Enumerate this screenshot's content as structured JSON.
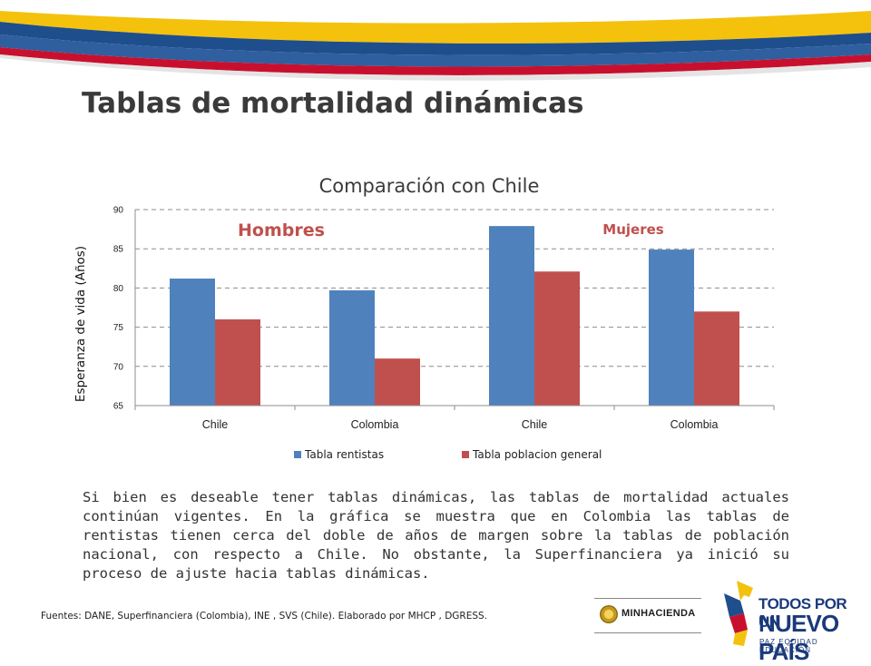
{
  "slide": {
    "title": "Tablas de mortalidad dinámicas"
  },
  "chart_data": {
    "type": "bar",
    "title": "Comparación con Chile",
    "xlabel": "",
    "ylabel": "Esperanza de vida (Años)",
    "categories": [
      "Chile",
      "Colombia",
      "Chile",
      "Colombia"
    ],
    "series": [
      {
        "name": "Tabla rentistas",
        "values": [
          81.2,
          79.7,
          87.9,
          84.9
        ],
        "color": "#4f81bd"
      },
      {
        "name": "Tabla poblacion general",
        "values": [
          76.0,
          71.0,
          82.1,
          77.0
        ],
        "color": "#c0504d"
      }
    ],
    "ylim": [
      65,
      90
    ],
    "yticks": [
      65,
      70,
      75,
      80,
      85,
      90
    ],
    "grid": true,
    "legend": "bottom",
    "group_labels": [
      "Hombres",
      "Mujeres"
    ]
  },
  "body_text": "Si bien es deseable tener tablas dinámicas, las tablas de mortalidad actuales continúan vigentes. En la gráfica se muestra que en Colombia las tablas de rentistas tienen cerca del doble de años de margen sobre la tablas de población nacional, con respecto a Chile. No obstante, la Superfinanciera ya inició su proceso de ajuste hacia tablas dinámicas.",
  "sources": "Fuentes: DANE, Superfinanciera (Colombia), INE , SVS (Chile). Elaborado por  MHCP , DGRESS.",
  "logos": {
    "minhacienda": "MINHACIENDA",
    "tpun_line1": "TODOS POR UN",
    "tpun_line2": "NUEVO PAÍS",
    "tpun_line3": "PAZ  EQUIDAD  EDUCACIÓN"
  },
  "colors": {
    "blue": "#4f81bd",
    "red": "#c0504d",
    "banner_yellow": "#f4c20d",
    "banner_blue": "#1f4e8c"
  }
}
